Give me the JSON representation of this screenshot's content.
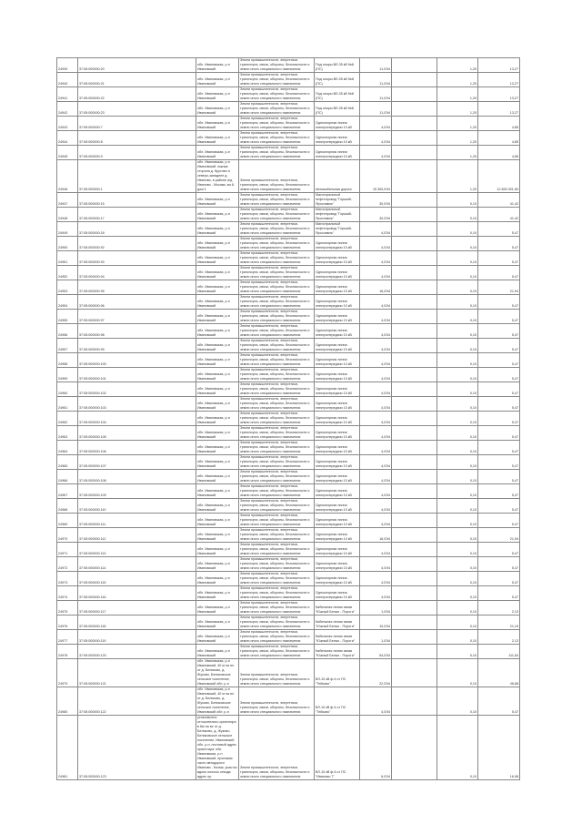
{
  "document": {
    "rows": [
      {
        "no": "24939",
        "code": "37:05:000000:20",
        "addr": "обл. Ивановская, р-н Ивановский",
        "desc": "Земли промышленности, энергетики, транспорта, связи, обороны, безопасности и земли иного специального назначения",
        "name": "Под опоры ВЛ-35 кВ №8 (ПС)",
        "qty": "11,0Э4",
        "price": "1,20",
        "sum": "13,27"
      },
      {
        "no": "24940",
        "code": "37:05:000000:21",
        "addr": "обл. Ивановская, р-н Ивановский",
        "desc": "Земли промышленности, энергетики, транспорта, связи, обороны, безопасности и земли иного специального назначения",
        "name": "Под опоры ВЛ-35 кВ №8 (ПС)",
        "qty": "11,0Э4",
        "price": "1,20",
        "sum": "13,27"
      },
      {
        "no": "24941",
        "code": "37:05:000000:22",
        "addr": "обл. Ивановская, р-н Ивановский",
        "desc": "Земли промышленности, энергетики, транспорта, связи, обороны, безопасности и земли иного специального назначения",
        "name": "Под опоры ВЛ-35 кВ №8 (ПС)",
        "qty": "11,0Э4",
        "price": "1,20",
        "sum": "13,27"
      },
      {
        "no": "24942",
        "code": "37:05:000000:23",
        "addr": "обл. Ивановская, р-н Ивановский",
        "desc": "Земли промышленности, энергетики, транспорта, связи, обороны, безопасности и земли иного специального назначения",
        "name": "Под опоры ВЛ-35 кВ №8 (ПС)",
        "qty": "11,0Э4",
        "price": "1,20",
        "sum": "13,27"
      },
      {
        "no": "24943",
        "code": "37:05:000000:7",
        "addr": "обл. Ивановская, р-н Ивановский",
        "desc": "Земли промышленности, энергетики, транспорта, связи, обороны, безопасности и земли иного специального назначения",
        "name": "Одноопорная линия электропередачи 10 кВ",
        "qty": "4,0Э4",
        "price": "1,20",
        "sum": "4,85"
      },
      {
        "no": "24944",
        "code": "37:05:000000:8",
        "addr": "обл. Ивановская, р-н Ивановский",
        "desc": "Земли промышленности, энергетики, транспорта, связи, обороны, безопасности и земли иного специального назначения",
        "name": "Одноопорная линия электропередачи 10 кВ",
        "qty": "4,0Э4",
        "price": "1,20",
        "sum": "4,85"
      },
      {
        "no": "24945",
        "code": "37:05:000000:9",
        "addr": "обл. Ивановская, р-н Ивановский",
        "desc": "Земли промышленности, энергетики, транспорта, связи, обороны, безопасности и земли иного специального назначения",
        "name": "Одноопорная линия электропередачи 10 кВ",
        "qty": "4,0Э4",
        "price": "1,20",
        "sum": "4,85"
      },
      {
        "no": "24946",
        "code": "37:05:000000:1",
        "addr": "обл. Ивановская, р-н Ивановский, южная сторона д. Крутово и северо-западнее д. Иваново, в районе а/д Иваново - Москва, км 8, дом 1",
        "desc": "Земли промышленности, энергетики, транспорта, связи, обороны, безопасности и земли иного специального назначения",
        "name": "Автомобильная дорога",
        "qty": "15 300,0Э4",
        "price": "1,20",
        "sum": "12 800 001,60"
      },
      {
        "no": "24947",
        "code": "37:05:000000:15",
        "addr": "обл. Ивановская, р-н Ивановский",
        "desc": "Земли промышленности, энергетики, транспорта, связи, обороны, безопасности и земли иного специального назначения",
        "name": "Магистральный нефтепровод \"Горький-Ярославль\"",
        "qty": "30,0Э4",
        "price": "0,10",
        "sum": "41,42"
      },
      {
        "no": "24948",
        "code": "37:05:000000:17",
        "addr": "обл. Ивановская, р-н Ивановский",
        "desc": "Земли промышленности, энергетики, транспорта, связи, обороны, безопасности и земли иного специального назначения",
        "name": "Магистральный нефтепровод \"Горький-Ярославль\"",
        "qty": "30,0Э4",
        "price": "0,10",
        "sum": "41,42"
      },
      {
        "no": "24949",
        "code": "37:05:000000:18",
        "addr": "обл. Ивановская, р-н Ивановский",
        "desc": "Земли промышленности, энергетики, транспорта, связи, обороны, безопасности и земли иного специального назначения",
        "name": "Магистральный нефтепровод \"Горький-Ярославль\"",
        "qty": "4,0Э4",
        "price": "0,10",
        "sum": "5,47"
      },
      {
        "no": "24950",
        "code": "37:05:000000:92",
        "addr": "обл. Ивановская, р-н Ивановский",
        "desc": "Земли промышленности, энергетики, транспорта, связи, обороны, безопасности и земли иного специального назначения",
        "name": "Одноопорная линия электропередачи 10 кВ",
        "qty": "4,0Э4",
        "price": "0,10",
        "sum": "5,47"
      },
      {
        "no": "24951",
        "code": "37:05:000000:93",
        "addr": "обл. Ивановская, р-н Ивановский",
        "desc": "Земли промышленности, энергетики, транспорта, связи, обороны, безопасности и земли иного специального назначения",
        "name": "Одноопорная линия электропередачи 10 кВ",
        "qty": "4,0Э4",
        "price": "0,10",
        "sum": "5,47"
      },
      {
        "no": "24952",
        "code": "37:05:000000:94",
        "addr": "обл. Ивановская, р-н Ивановский",
        "desc": "Земли промышленности, энергетики, транспорта, связи, обороны, безопасности и земли иного специального назначения",
        "name": "Одноопорная линия электропередачи 10 кВ",
        "qty": "4,0Э4",
        "price": "0,10",
        "sum": "5,47"
      },
      {
        "no": "24953",
        "code": "37:05:000000:95",
        "addr": "обл. Ивановская, р-н Ивановский",
        "desc": "Земли промышленности, энергетики, транспорта, связи, обороны, безопасности и земли иного специального назначения",
        "name": "Одноопорная линия электропередачи 10 кВ",
        "qty": "16,0Э4",
        "price": "0,10",
        "sum": "21,94"
      },
      {
        "no": "24954",
        "code": "37:05:000000:96",
        "addr": "обл. Ивановская, р-н Ивановский",
        "desc": "Земли промышленности, энергетики, транспорта, связи, обороны, безопасности и земли иного специального назначения",
        "name": "Одноопорная линия электропередачи 10 кВ",
        "qty": "4,0Э4",
        "price": "0,10",
        "sum": "5,47"
      },
      {
        "no": "24955",
        "code": "37:05:000000:97",
        "addr": "обл. Ивановская, р-н Ивановский",
        "desc": "Земли промышленности, энергетики, транспорта, связи, обороны, безопасности и земли иного специального назначения",
        "name": "Одноопорная линия электропередачи 10 кВ",
        "qty": "4,0Э4",
        "price": "0,10",
        "sum": "5,47"
      },
      {
        "no": "24956",
        "code": "37:05:000000:98",
        "addr": "обл. Ивановская, р-н Ивановский",
        "desc": "Земли промышленности, энергетики, транспорта, связи, обороны, безопасности и земли иного специального назначения",
        "name": "Одноопорная линия электропередачи 10 кВ",
        "qty": "4,0Э4",
        "price": "0,10",
        "sum": "5,47"
      },
      {
        "no": "24957",
        "code": "37:05:000000:99",
        "addr": "обл. Ивановская, р-н Ивановский",
        "desc": "Земли промышленности, энергетики, транспорта, связи, обороны, безопасности и земли иного специального назначения",
        "name": "Одноопорная линия электропередачи 10 кВ",
        "qty": "4,0Э4",
        "price": "0,10",
        "sum": "5,47"
      },
      {
        "no": "24958",
        "code": "37:05:000000:100",
        "addr": "обл. Ивановская, р-н Ивановский",
        "desc": "Земли промышленности, энергетики, транспорта, связи, обороны, безопасности и земли иного специального назначения",
        "name": "Одноопорная линия электропередачи 10 кВ",
        "qty": "4,0Э4",
        "price": "0,10",
        "sum": "5,47"
      },
      {
        "no": "24959",
        "code": "37:05:000000:101",
        "addr": "обл. Ивановская, р-н Ивановский",
        "desc": "Земли промышленности, энергетики, транспорта, связи, обороны, безопасности и земли иного специального назначения",
        "name": "Одноопорная линия электропередачи 10 кВ",
        "qty": "4,0Э4",
        "price": "0,10",
        "sum": "5,47"
      },
      {
        "no": "24960",
        "code": "37:05:000000:102",
        "addr": "обл. Ивановская, р-н Ивановский",
        "desc": "Земли промышленности, энергетики, транспорта, связи, обороны, безопасности и земли иного специального назначения",
        "name": "Одноопорная линия электропередачи 10 кВ",
        "qty": "4,0Э4",
        "price": "0,10",
        "sum": "5,47"
      },
      {
        "no": "24961",
        "code": "37:05:000000:103",
        "addr": "обл. Ивановская, р-н Ивановский",
        "desc": "Земли промышленности, энергетики, транспорта, связи, обороны, безопасности и земли иного специального назначения",
        "name": "Одноопорная линия электропередачи 10 кВ",
        "qty": "4,0Э4",
        "price": "0,10",
        "sum": "5,47"
      },
      {
        "no": "24962",
        "code": "37:05:000000:104",
        "addr": "обл. Ивановская, р-н Ивановский",
        "desc": "Земли промышленности, энергетики, транспорта, связи, обороны, безопасности и земли иного специального назначения",
        "name": "Одноопорная линия электропередачи 10 кВ",
        "qty": "4,0Э4",
        "price": "0,10",
        "sum": "5,47"
      },
      {
        "no": "24963",
        "code": "37:05:000000:105",
        "addr": "обл. Ивановская, р-н Ивановский",
        "desc": "Земли промышленности, энергетики, транспорта, связи, обороны, безопасности и земли иного специального назначения",
        "name": "Одноопорная линия электропередачи 10 кВ",
        "qty": "4,0Э4",
        "price": "0,10",
        "sum": "5,47"
      },
      {
        "no": "24964",
        "code": "37:05:000000:106",
        "addr": "обл. Ивановская, р-н Ивановский",
        "desc": "Земли промышленности, энергетики, транспорта, связи, обороны, безопасности и земли иного специального назначения",
        "name": "Одноопорная линия электропередачи 10 кВ",
        "qty": "4,0Э4",
        "price": "0,10",
        "sum": "5,47"
      },
      {
        "no": "24965",
        "code": "37:05:000000:107",
        "addr": "обл. Ивановская, р-н Ивановский",
        "desc": "Земли промышленности, энергетики, транспорта, связи, обороны, безопасности и земли иного специального назначения",
        "name": "Одноопорная линия электропередачи 10 кВ",
        "qty": "4,0Э4",
        "price": "0,10",
        "sum": "5,47"
      },
      {
        "no": "24966",
        "code": "37:05:000000:108",
        "addr": "обл. Ивановская, р-н Ивановский",
        "desc": "Земли промышленности, энергетики, транспорта, связи, обороны, безопасности и земли иного специального назначения",
        "name": "Одноопорная линия электропередачи 10 кВ",
        "qty": "4,0Э4",
        "price": "0,10",
        "sum": "5,47"
      },
      {
        "no": "24967",
        "code": "37:05:000000:109",
        "addr": "обл. Ивановская, р-н Ивановский",
        "desc": "Земли промышленности, энергетики, транспорта, связи, обороны, безопасности и земли иного специального назначения",
        "name": "Одноопорная линия электропередачи 10 кВ",
        "qty": "4,0Э4",
        "price": "0,10",
        "sum": "5,47"
      },
      {
        "no": "24968",
        "code": "37:05:000000:110",
        "addr": "обл. Ивановская, р-н Ивановский",
        "desc": "Земли промышленности, энергетики, транспорта, связи, обороны, безопасности и земли иного специального назначения",
        "name": "Одноопорная линия электропередачи 10 кВ",
        "qty": "4,0Э4",
        "price": "0,10",
        "sum": "5,47"
      },
      {
        "no": "24969",
        "code": "37:05:000000:111",
        "addr": "обл. Ивановская, р-н Ивановский",
        "desc": "Земли промышленности, энергетики, транспорта, связи, обороны, безопасности и земли иного специального назначения",
        "name": "Одноопорная линия электропередачи 10 кВ",
        "qty": "4,0Э4",
        "price": "0,10",
        "sum": "5,47"
      },
      {
        "no": "24970",
        "code": "37:05:000000:112",
        "addr": "обл. Ивановская, р-н Ивановский",
        "desc": "Земли промышленности, энергетики, транспорта, связи, обороны, безопасности и земли иного специального назначения",
        "name": "Одноопорная линия электропередачи 10 кВ",
        "qty": "16,0Э4",
        "price": "0,10",
        "sum": "21,94"
      },
      {
        "no": "24971",
        "code": "37:05:000000:113",
        "addr": "обл. Ивановская, р-н Ивановский",
        "desc": "Земли промышленности, энергетики, транспорта, связи, обороны, безопасности и земли иного специального назначения",
        "name": "Одноопорная линия электропередачи 10 кВ",
        "qty": "4,0Э4",
        "price": "0,10",
        "sum": "5,47"
      },
      {
        "no": "24972",
        "code": "37:05:000000:114",
        "addr": "обл. Ивановская, р-н Ивановский",
        "desc": "Земли промышленности, энергетики, транспорта, связи, обороны, безопасности и земли иного специального назначения",
        "name": "Одноопорная линия электропередачи 10 кВ",
        "qty": "4,0Э4",
        "price": "0,10",
        "sum": "5,47"
      },
      {
        "no": "24973",
        "code": "37:05:000000:115",
        "addr": "обл. Ивановская, р-н Ивановский",
        "desc": "Земли промышленности, энергетики, транспорта, связи, обороны, безопасности и земли иного специального назначения",
        "name": "Одноопорная линия электропередачи 10 кВ",
        "qty": "4,0Э4",
        "price": "0,10",
        "sum": "5,47"
      },
      {
        "no": "24974",
        "code": "37:05:000000:116",
        "addr": "обл. Ивановская, р-н Ивановский",
        "desc": "Земли промышленности, энергетики, транспорта, связи, обороны, безопасности и земли иного специального назначения",
        "name": "Одноопорная линия электропередачи 10 кВ",
        "qty": "4,0Э4",
        "price": "0,10",
        "sum": "5,47"
      },
      {
        "no": "24975",
        "code": "37:05:000000:117",
        "addr": "обл. Ивановская, р-н Ивановский",
        "desc": "Земли промышленности, энергетики, транспорта, связи, обороны, безопасности и земли иного специального назначения",
        "name": "Кабельная линия связи \"Южный Белых - Пороги\"",
        "qty": "1,0Э4",
        "price": "0,10",
        "sum": "2,13"
      },
      {
        "no": "24976",
        "code": "37:05:000000:118",
        "addr": "обл. Ивановская, р-н Ивановский",
        "desc": "Земли промышленности, энергетики, транспорта, связи, обороны, безопасности и земли иного специального назначения",
        "name": "Кабельная линия связи \"Южный Белых - Пороги\"",
        "qty": "10,0Э4",
        "price": "0,10",
        "sum": "21,19"
      },
      {
        "no": "24977",
        "code": "37:05:000000:119",
        "addr": "обл. Ивановская, р-н Ивановский",
        "desc": "Земли промышленности, энергетики, транспорта, связи, обороны, безопасности и земли иного специального назначения",
        "name": "Кабельная линия связи \"Южный Белых - Пороги\"",
        "qty": "1,0Э4",
        "price": "0,10",
        "sum": "2,13"
      },
      {
        "no": "24978",
        "code": "37:05:000000:120",
        "addr": "обл. Ивановская, р-н Ивановский",
        "desc": "Земли промышленности, энергетики, транспорта, связи, обороны, безопасности и земли иного специального назначения",
        "name": "Кабельная линия связи \"Южный Белых - Пороги\"",
        "qty": "54,0Э4",
        "price": "0,10",
        "sum": "111,54"
      },
      {
        "no": "24979",
        "code": "37:05:000000:121",
        "addr": "обл. Ивановская, р-н Ивановский, 40 м на юг от д. Беликово, д. Жуково, Беликовское сельское поселение, Ивановский обл. р-н",
        "desc": "Земли промышленности, энергетики, транспорта, связи, обороны, безопасности и земли иного специального назначения",
        "name": "ВЛ-10 кВ ф.4 от ПС \"Тейково\"",
        "qty": "22,0Э4",
        "price": "0,10",
        "sum": "46,68"
      },
      {
        "no": "24980",
        "code": "37:05:000000:122",
        "addr": "обл. Ивановская, р-н Ивановский, 40 м на юг от д. Беликово, д. Жуково, Беликовское сельское поселение, Ивановский обл. р-н",
        "desc": "Земли промышленности, энергетики, транспорта, связи, обороны, безопасности и земли иного специального назначения",
        "name": "ВЛ-10 кВ ф.4 от ПС \"Тейково\"",
        "qty": "4,0Э4",
        "price": "0,10",
        "sum": "5,47"
      },
      {
        "no": "24981",
        "code": "37:05:000000:123",
        "addr": "установлено относительно ориентира в 6м на юг от д. Беликово, д. Жуково, Беликовское сельское поселение, Ивановский обл. р-н, почтовый адрес ориентира: обл. Ивановская, р-н Ивановский, проезжая часть автодороги Иваново - Кохма, участок вдоль полосы отвода адрес ор.",
        "desc": "Земли промышленности, энергетики, транспорта, связи, обороны, безопасности и земли иного специального назначения",
        "name": "ВЛ-10 кВ ф.4 от ПС \"Иваново-7\"",
        "qty": "6,0Э4",
        "price": "0,10",
        "sum": "16,98"
      }
    ]
  }
}
